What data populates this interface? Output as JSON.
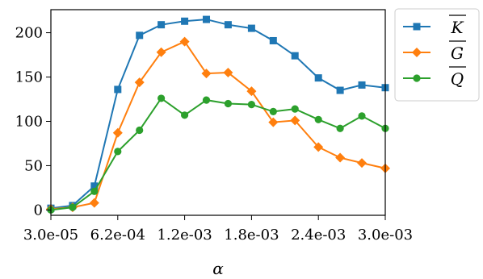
{
  "chart_data": {
    "type": "line",
    "xlabel": "α",
    "ylabel": "",
    "title": "",
    "x_tick_labels": [
      "3.0e-05",
      "6.2e-04",
      "1.2e-03",
      "1.8e-03",
      "2.4e-03",
      "3.0e-03"
    ],
    "x_tick_positions": [
      0,
      4,
      8,
      12,
      16,
      20
    ],
    "y_ticks": [
      0,
      50,
      100,
      150,
      200
    ],
    "ylim": [
      -6,
      226
    ],
    "xlim": [
      0,
      20
    ],
    "grid": false,
    "legend_position": "outside-top-right",
    "series": [
      {
        "name": "K",
        "color": "#1f77b4",
        "marker": "square",
        "x": [
          0,
          1.3,
          2.6,
          4,
          5.3,
          6.6,
          8,
          9.3,
          10.6,
          12,
          13.3,
          14.6,
          16,
          17.3,
          18.6,
          20
        ],
        "values": [
          2,
          5,
          27,
          136,
          197,
          209,
          213,
          215,
          209,
          205,
          191,
          174,
          149,
          135,
          141,
          138
        ]
      },
      {
        "name": "G",
        "color": "#ff7f0e",
        "marker": "diamond",
        "x": [
          0,
          1.3,
          2.6,
          4,
          5.3,
          6.6,
          8,
          9.3,
          10.6,
          12,
          13.3,
          14.6,
          16,
          17.3,
          18.6,
          20
        ],
        "values": [
          1,
          3,
          8,
          87,
          144,
          178,
          190,
          154,
          155,
          134,
          99,
          101,
          71,
          59,
          53,
          47
        ]
      },
      {
        "name": "Q",
        "color": "#2ca02c",
        "marker": "circle",
        "x": [
          0,
          1.3,
          2.6,
          4,
          5.3,
          6.6,
          8,
          9.3,
          10.6,
          12,
          13.3,
          14.6,
          16,
          17.3,
          18.6,
          20
        ],
        "values": [
          0,
          3,
          21,
          66,
          90,
          126,
          107,
          124,
          120,
          119,
          111,
          114,
          102,
          92,
          106,
          92
        ]
      }
    ]
  }
}
